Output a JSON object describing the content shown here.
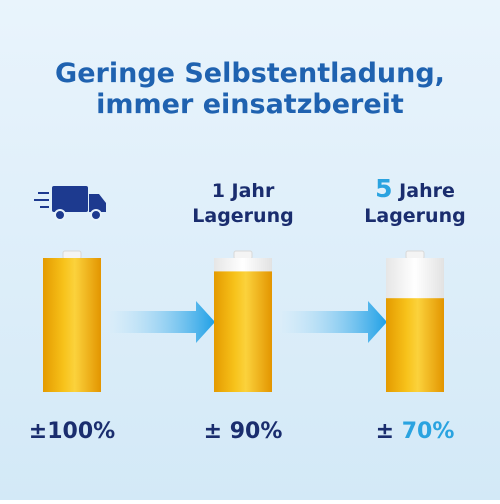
{
  "title": [
    "Geringe Selbstentladung,",
    "immer einsatzbereit"
  ],
  "stages": [
    {
      "level": 100,
      "sign": "±",
      "value_label": "100%"
    },
    {
      "heading": [
        "1 Jahr",
        "Lagerung"
      ],
      "level": 90,
      "sign": "±",
      "value_label": "90%"
    },
    {
      "heading_number": "5",
      "heading": [
        "Jahre",
        "Lagerung"
      ],
      "level": 70,
      "sign": "±",
      "value_label": "70%"
    }
  ]
}
